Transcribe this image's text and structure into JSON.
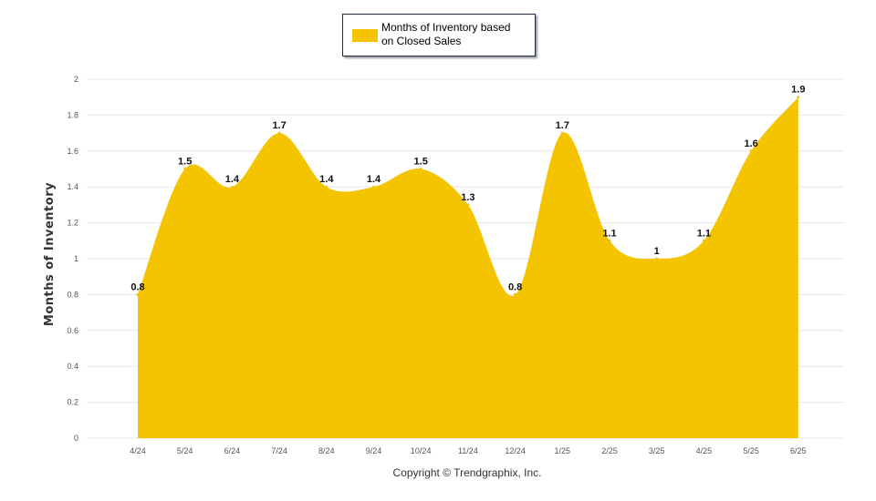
{
  "chart_data": {
    "type": "area",
    "categories": [
      "4/24",
      "5/24",
      "6/24",
      "7/24",
      "8/24",
      "9/24",
      "10/24",
      "11/24",
      "12/24",
      "1/25",
      "2/25",
      "3/25",
      "4/25",
      "5/25",
      "6/25"
    ],
    "series": [
      {
        "name": "Months of Inventory based on Closed Sales",
        "values": [
          0.8,
          1.5,
          1.4,
          1.7,
          1.4,
          1.4,
          1.5,
          1.3,
          0.8,
          1.7,
          1.1,
          1,
          1.1,
          1.6,
          1.9
        ]
      }
    ],
    "data_labels": [
      "0.8",
      "1.5",
      "1.4",
      "1.7",
      "1.4",
      "1.4",
      "1.5",
      "1.3",
      "0.8",
      "1.7",
      "1.1",
      "1",
      "1.1",
      "1.6",
      "1.9"
    ],
    "title": "",
    "xlabel": "",
    "ylabel": "Months of Inventory",
    "ylim": [
      0,
      2
    ],
    "yticks": [
      "0",
      "0.2",
      "0.4",
      "0.6",
      "0.8",
      "1",
      "1.2",
      "1.4",
      "1.6",
      "1.8",
      "2"
    ],
    "grid": true,
    "legend_position": "top-center",
    "colors": {
      "area": "#F5C400",
      "grid": "#e6e6e6",
      "axis_text": "#555555"
    }
  },
  "legend": {
    "label": "Months of Inventory based\non Closed Sales"
  },
  "footer": {
    "copyright": "Copyright © Trendgraphix, Inc."
  }
}
